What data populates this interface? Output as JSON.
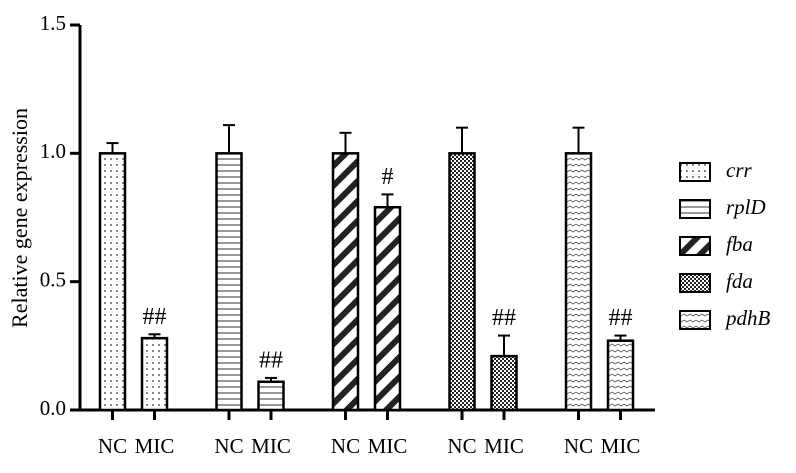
{
  "chart_data": {
    "type": "bar",
    "y_label": "Relative gene expression",
    "categories": [
      "NC",
      "MIC"
    ],
    "ylim": [
      0,
      1.5
    ],
    "yticks": [
      {
        "value": 0,
        "label": "0.0"
      },
      {
        "value": 0.5,
        "label": "0.5"
      },
      {
        "value": 1,
        "label": "1.0"
      },
      {
        "value": 1.5,
        "label": "1.5"
      }
    ],
    "color": "#000000",
    "legend": "right",
    "series": [
      {
        "name": "crr",
        "pattern": "dots",
        "values": [
          1.0,
          0.28
        ],
        "errors": [
          0.04,
          0.015
        ],
        "annotations": [
          null,
          "##"
        ]
      },
      {
        "name": "rplD",
        "pattern": "hlines",
        "values": [
          1.0,
          0.11
        ],
        "errors": [
          0.11,
          0.015
        ],
        "annotations": [
          null,
          "##"
        ]
      },
      {
        "name": "fba",
        "pattern": "stripes",
        "values": [
          1.0,
          0.79
        ],
        "errors": [
          0.08,
          0.05
        ],
        "annotations": [
          null,
          "#"
        ]
      },
      {
        "name": "fda",
        "pattern": "checks",
        "values": [
          1.0,
          0.21
        ],
        "errors": [
          0.1,
          0.08
        ],
        "annotations": [
          null,
          "##"
        ]
      },
      {
        "name": "pdhB",
        "pattern": "zigzag",
        "values": [
          1.0,
          0.27
        ],
        "errors": [
          0.1,
          0.02
        ],
        "annotations": [
          null,
          "##"
        ]
      }
    ]
  }
}
